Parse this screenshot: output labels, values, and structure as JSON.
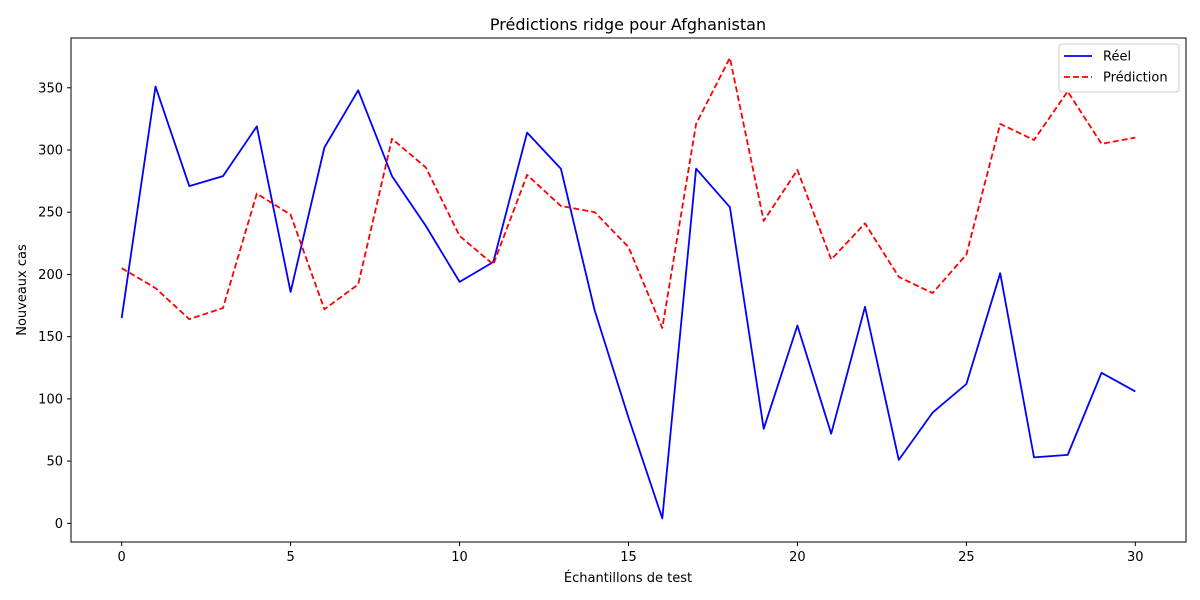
{
  "chart_data": {
    "type": "line",
    "title": "Prédictions ridge pour Afghanistan",
    "xlabel": "Échantillons de test",
    "ylabel": "Nouveaux cas",
    "xlim": [
      -1.5,
      31.5
    ],
    "ylim": [
      -15,
      390
    ],
    "xticks": [
      0,
      5,
      10,
      15,
      20,
      25,
      30
    ],
    "yticks": [
      0,
      50,
      100,
      150,
      200,
      250,
      300,
      350
    ],
    "grid": false,
    "legend_position": "top-right",
    "x": [
      0,
      1,
      2,
      3,
      4,
      5,
      6,
      7,
      8,
      9,
      10,
      11,
      12,
      13,
      14,
      15,
      16,
      17,
      18,
      19,
      20,
      21,
      22,
      23,
      24,
      25,
      26,
      27,
      28,
      29,
      30
    ],
    "series": [
      {
        "name": "Réel",
        "color": "#0000ff",
        "style": "solid",
        "values": [
          165,
          351,
          271,
          279,
          319,
          186,
          302,
          348,
          279,
          239,
          194,
          210,
          314,
          285,
          171,
          85,
          4,
          285,
          254,
          76,
          159,
          72,
          174,
          51,
          89,
          112,
          201,
          53,
          55,
          121,
          106
        ]
      },
      {
        "name": "Prédiction",
        "color": "#ff0000",
        "style": "dashed",
        "values": [
          205,
          189,
          164,
          173,
          265,
          248,
          172,
          192,
          309,
          286,
          231,
          208,
          280,
          255,
          250,
          222,
          157,
          321,
          374,
          243,
          284,
          212,
          241,
          198,
          185,
          216,
          321,
          308,
          347,
          305,
          310
        ]
      }
    ]
  }
}
